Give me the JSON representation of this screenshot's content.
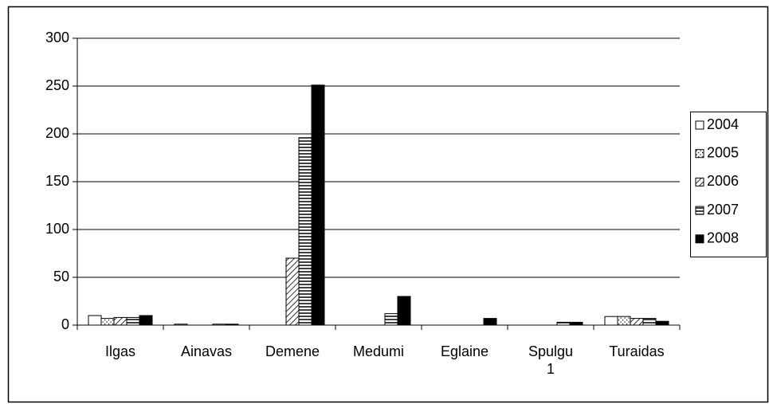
{
  "chart_data": {
    "type": "bar",
    "categories": [
      "Ilgas",
      "Ainavas",
      "Demene",
      "Medumi",
      "Eglaine",
      "Spulgu 1",
      "Turaidas"
    ],
    "series": [
      {
        "name": "2004",
        "color": "#000000",
        "pattern": "none",
        "values": [
          10,
          1,
          0,
          0,
          0,
          0,
          9
        ]
      },
      {
        "name": "2005",
        "color": "#000000",
        "pattern": "dots",
        "values": [
          7,
          0,
          0,
          0,
          0,
          0,
          9
        ]
      },
      {
        "name": "2006",
        "color": "#000000",
        "pattern": "diagonal",
        "values": [
          8,
          0,
          70,
          0,
          0,
          0,
          7
        ]
      },
      {
        "name": "2007",
        "color": "#000000",
        "pattern": "horizontal",
        "values": [
          8,
          1,
          196,
          12,
          0,
          3,
          7
        ]
      },
      {
        "name": "2008",
        "color": "#000000",
        "pattern": "solid",
        "values": [
          10,
          1,
          251,
          30,
          7,
          3,
          4
        ]
      }
    ],
    "ylim": [
      0,
      300
    ],
    "yticks": [
      0,
      50,
      100,
      150,
      200,
      250,
      300
    ],
    "grid": true,
    "legend": "right"
  }
}
